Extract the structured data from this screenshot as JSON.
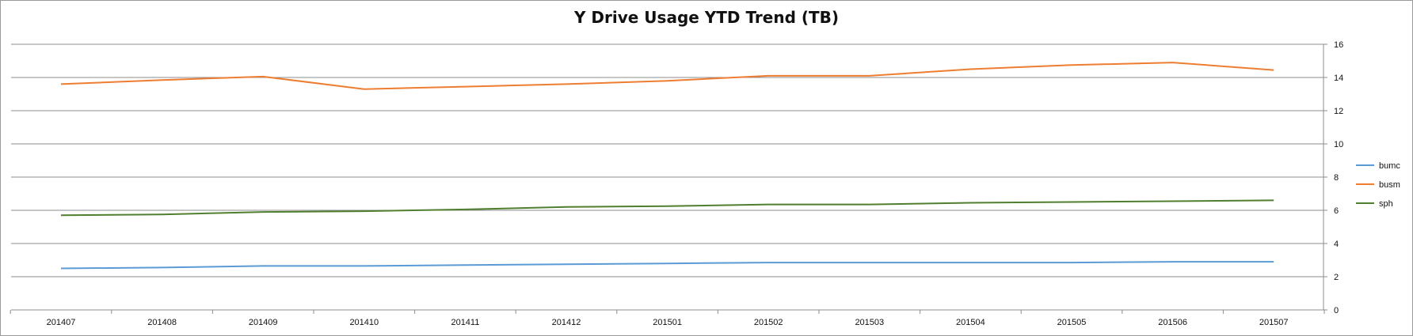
{
  "chart_data": {
    "type": "line",
    "title": "Y Drive Usage YTD Trend (TB)",
    "xlabel": "",
    "ylabel": "",
    "categories": [
      "201407",
      "201408",
      "201409",
      "201410",
      "201411",
      "201412",
      "201501",
      "201502",
      "201503",
      "201504",
      "201505",
      "201506",
      "201507"
    ],
    "ylim": [
      0,
      16
    ],
    "yticks": [
      0,
      2,
      4,
      6,
      8,
      10,
      12,
      14,
      16
    ],
    "y_axis_side": "right",
    "grid": true,
    "legend_position": "right",
    "series": [
      {
        "name": "bumc",
        "color": "#5b9bd5",
        "values": [
          2.5,
          2.55,
          2.65,
          2.65,
          2.7,
          2.75,
          2.8,
          2.85,
          2.85,
          2.85,
          2.85,
          2.9,
          2.9
        ]
      },
      {
        "name": "busm",
        "color": "#ed7d31",
        "values": [
          13.6,
          13.85,
          14.05,
          13.3,
          13.45,
          13.6,
          13.8,
          14.1,
          14.1,
          14.5,
          14.75,
          14.9,
          14.45
        ]
      },
      {
        "name": "sph",
        "color": "#4f7f2f",
        "values": [
          5.7,
          5.75,
          5.9,
          5.95,
          6.05,
          6.2,
          6.25,
          6.35,
          6.35,
          6.45,
          6.5,
          6.55,
          6.6
        ]
      }
    ]
  }
}
